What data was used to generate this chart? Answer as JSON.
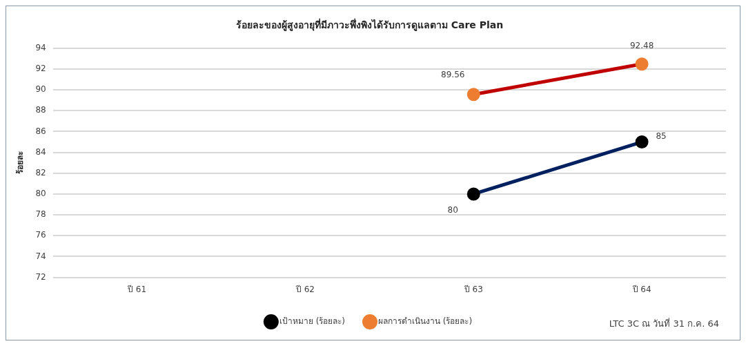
{
  "chart_data": {
    "type": "line",
    "title": "ร้อยละของผู้สูงอายุที่มีภาวะพึ่งพิงได้รับการดูแลตาม Care Plan",
    "ylabel": "ร้อยละ",
    "categories": [
      "ปี 61",
      "ปี 62",
      "ปี 63",
      "ปี 64"
    ],
    "series": [
      {
        "name": "เป้าหมาย (ร้อยละ)",
        "color": "#002060",
        "colors": [
          "#000000",
          "#000000",
          "#000000",
          "#000000"
        ],
        "values": [
          null,
          null,
          80,
          85
        ]
      },
      {
        "name": "ผลการดำเนินงาน (ร้อยละ)",
        "color": "#c00000",
        "colors": [
          "#ed7d31",
          "#ed7d31",
          "#ed7d31",
          "#ed7d31"
        ],
        "values": [
          null,
          null,
          89.56,
          92.48
        ]
      }
    ],
    "ylim": [
      72,
      94
    ],
    "yticks": [
      72,
      74,
      76,
      78,
      80,
      82,
      84,
      86,
      88,
      90,
      92,
      94
    ],
    "grid": "y",
    "legend": "bottom",
    "marker": "circle",
    "line_style": "solid",
    "data_labels": true,
    "annotations": [
      "LTC 3C ณ วันที่ 31 ก.ค. 64"
    ]
  }
}
